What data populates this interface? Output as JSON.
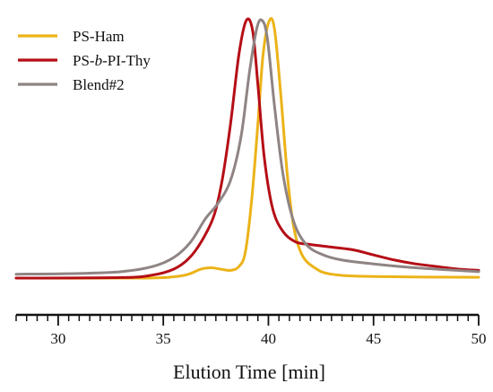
{
  "chart_data": {
    "type": "line",
    "title": "",
    "xlabel": "Elution Time [min]",
    "ylabel": "",
    "xlim": [
      28,
      50
    ],
    "ylim": [
      0,
      1.02
    ],
    "x_ticks": [
      30,
      35,
      40,
      45,
      50
    ],
    "x_tick_labels": [
      "30",
      "35",
      "40",
      "45",
      "50"
    ],
    "x_minor_tick_step": 0.5,
    "y_axis_visible": false,
    "grid": false,
    "legend_position": "top-left",
    "series": [
      {
        "name": "PS-Ham",
        "color": "#ecb318",
        "legend_label": {
          "prefix": "PS-Ham",
          "italic": "",
          "suffix": ""
        },
        "points": [
          [
            28,
            0.0
          ],
          [
            34,
            0.0
          ],
          [
            35.5,
            0.005
          ],
          [
            36.2,
            0.015
          ],
          [
            36.8,
            0.035
          ],
          [
            37.3,
            0.04
          ],
          [
            37.7,
            0.035
          ],
          [
            38.2,
            0.03
          ],
          [
            38.6,
            0.045
          ],
          [
            38.9,
            0.1
          ],
          [
            39.2,
            0.3
          ],
          [
            39.5,
            0.6
          ],
          [
            39.75,
            0.87
          ],
          [
            40.05,
            1.0
          ],
          [
            40.3,
            0.96
          ],
          [
            40.6,
            0.7
          ],
          [
            40.9,
            0.4
          ],
          [
            41.2,
            0.2
          ],
          [
            41.6,
            0.09
          ],
          [
            42.2,
            0.04
          ],
          [
            43,
            0.015
          ],
          [
            45,
            0.006
          ],
          [
            50,
            0.003
          ]
        ]
      },
      {
        "name": "PS-b-PI-Thy",
        "color": "#b50e16",
        "legend_label": {
          "prefix": "PS-",
          "italic": "b",
          "suffix": "-PI-Thy"
        },
        "points": [
          [
            28,
            0.0
          ],
          [
            33,
            0.002
          ],
          [
            34.5,
            0.012
          ],
          [
            35.5,
            0.035
          ],
          [
            36.2,
            0.075
          ],
          [
            36.8,
            0.14
          ],
          [
            37.4,
            0.24
          ],
          [
            37.8,
            0.38
          ],
          [
            38.2,
            0.6
          ],
          [
            38.6,
            0.87
          ],
          [
            38.95,
            1.0
          ],
          [
            39.25,
            0.96
          ],
          [
            39.5,
            0.75
          ],
          [
            39.8,
            0.47
          ],
          [
            40.2,
            0.27
          ],
          [
            40.7,
            0.18
          ],
          [
            41.3,
            0.14
          ],
          [
            42,
            0.13
          ],
          [
            43,
            0.12
          ],
          [
            44,
            0.11
          ],
          [
            45,
            0.09
          ],
          [
            46,
            0.07
          ],
          [
            47,
            0.055
          ],
          [
            48,
            0.045
          ],
          [
            49,
            0.035
          ],
          [
            50,
            0.03
          ]
        ]
      },
      {
        "name": "Blend#2",
        "color": "#8f8484",
        "legend_label": {
          "prefix": "Blend#2",
          "italic": "",
          "suffix": ""
        },
        "points": [
          [
            28,
            0.015
          ],
          [
            31,
            0.018
          ],
          [
            33,
            0.025
          ],
          [
            34.5,
            0.045
          ],
          [
            35.5,
            0.08
          ],
          [
            36.3,
            0.14
          ],
          [
            37,
            0.23
          ],
          [
            37.6,
            0.29
          ],
          [
            38.2,
            0.38
          ],
          [
            38.7,
            0.55
          ],
          [
            39.1,
            0.8
          ],
          [
            39.45,
            0.97
          ],
          [
            39.7,
            1.0
          ],
          [
            39.95,
            0.93
          ],
          [
            40.3,
            0.66
          ],
          [
            40.7,
            0.4
          ],
          [
            41.2,
            0.22
          ],
          [
            41.8,
            0.13
          ],
          [
            42.6,
            0.09
          ],
          [
            43.5,
            0.07
          ],
          [
            45,
            0.055
          ],
          [
            47,
            0.04
          ],
          [
            50,
            0.025
          ]
        ]
      }
    ]
  }
}
